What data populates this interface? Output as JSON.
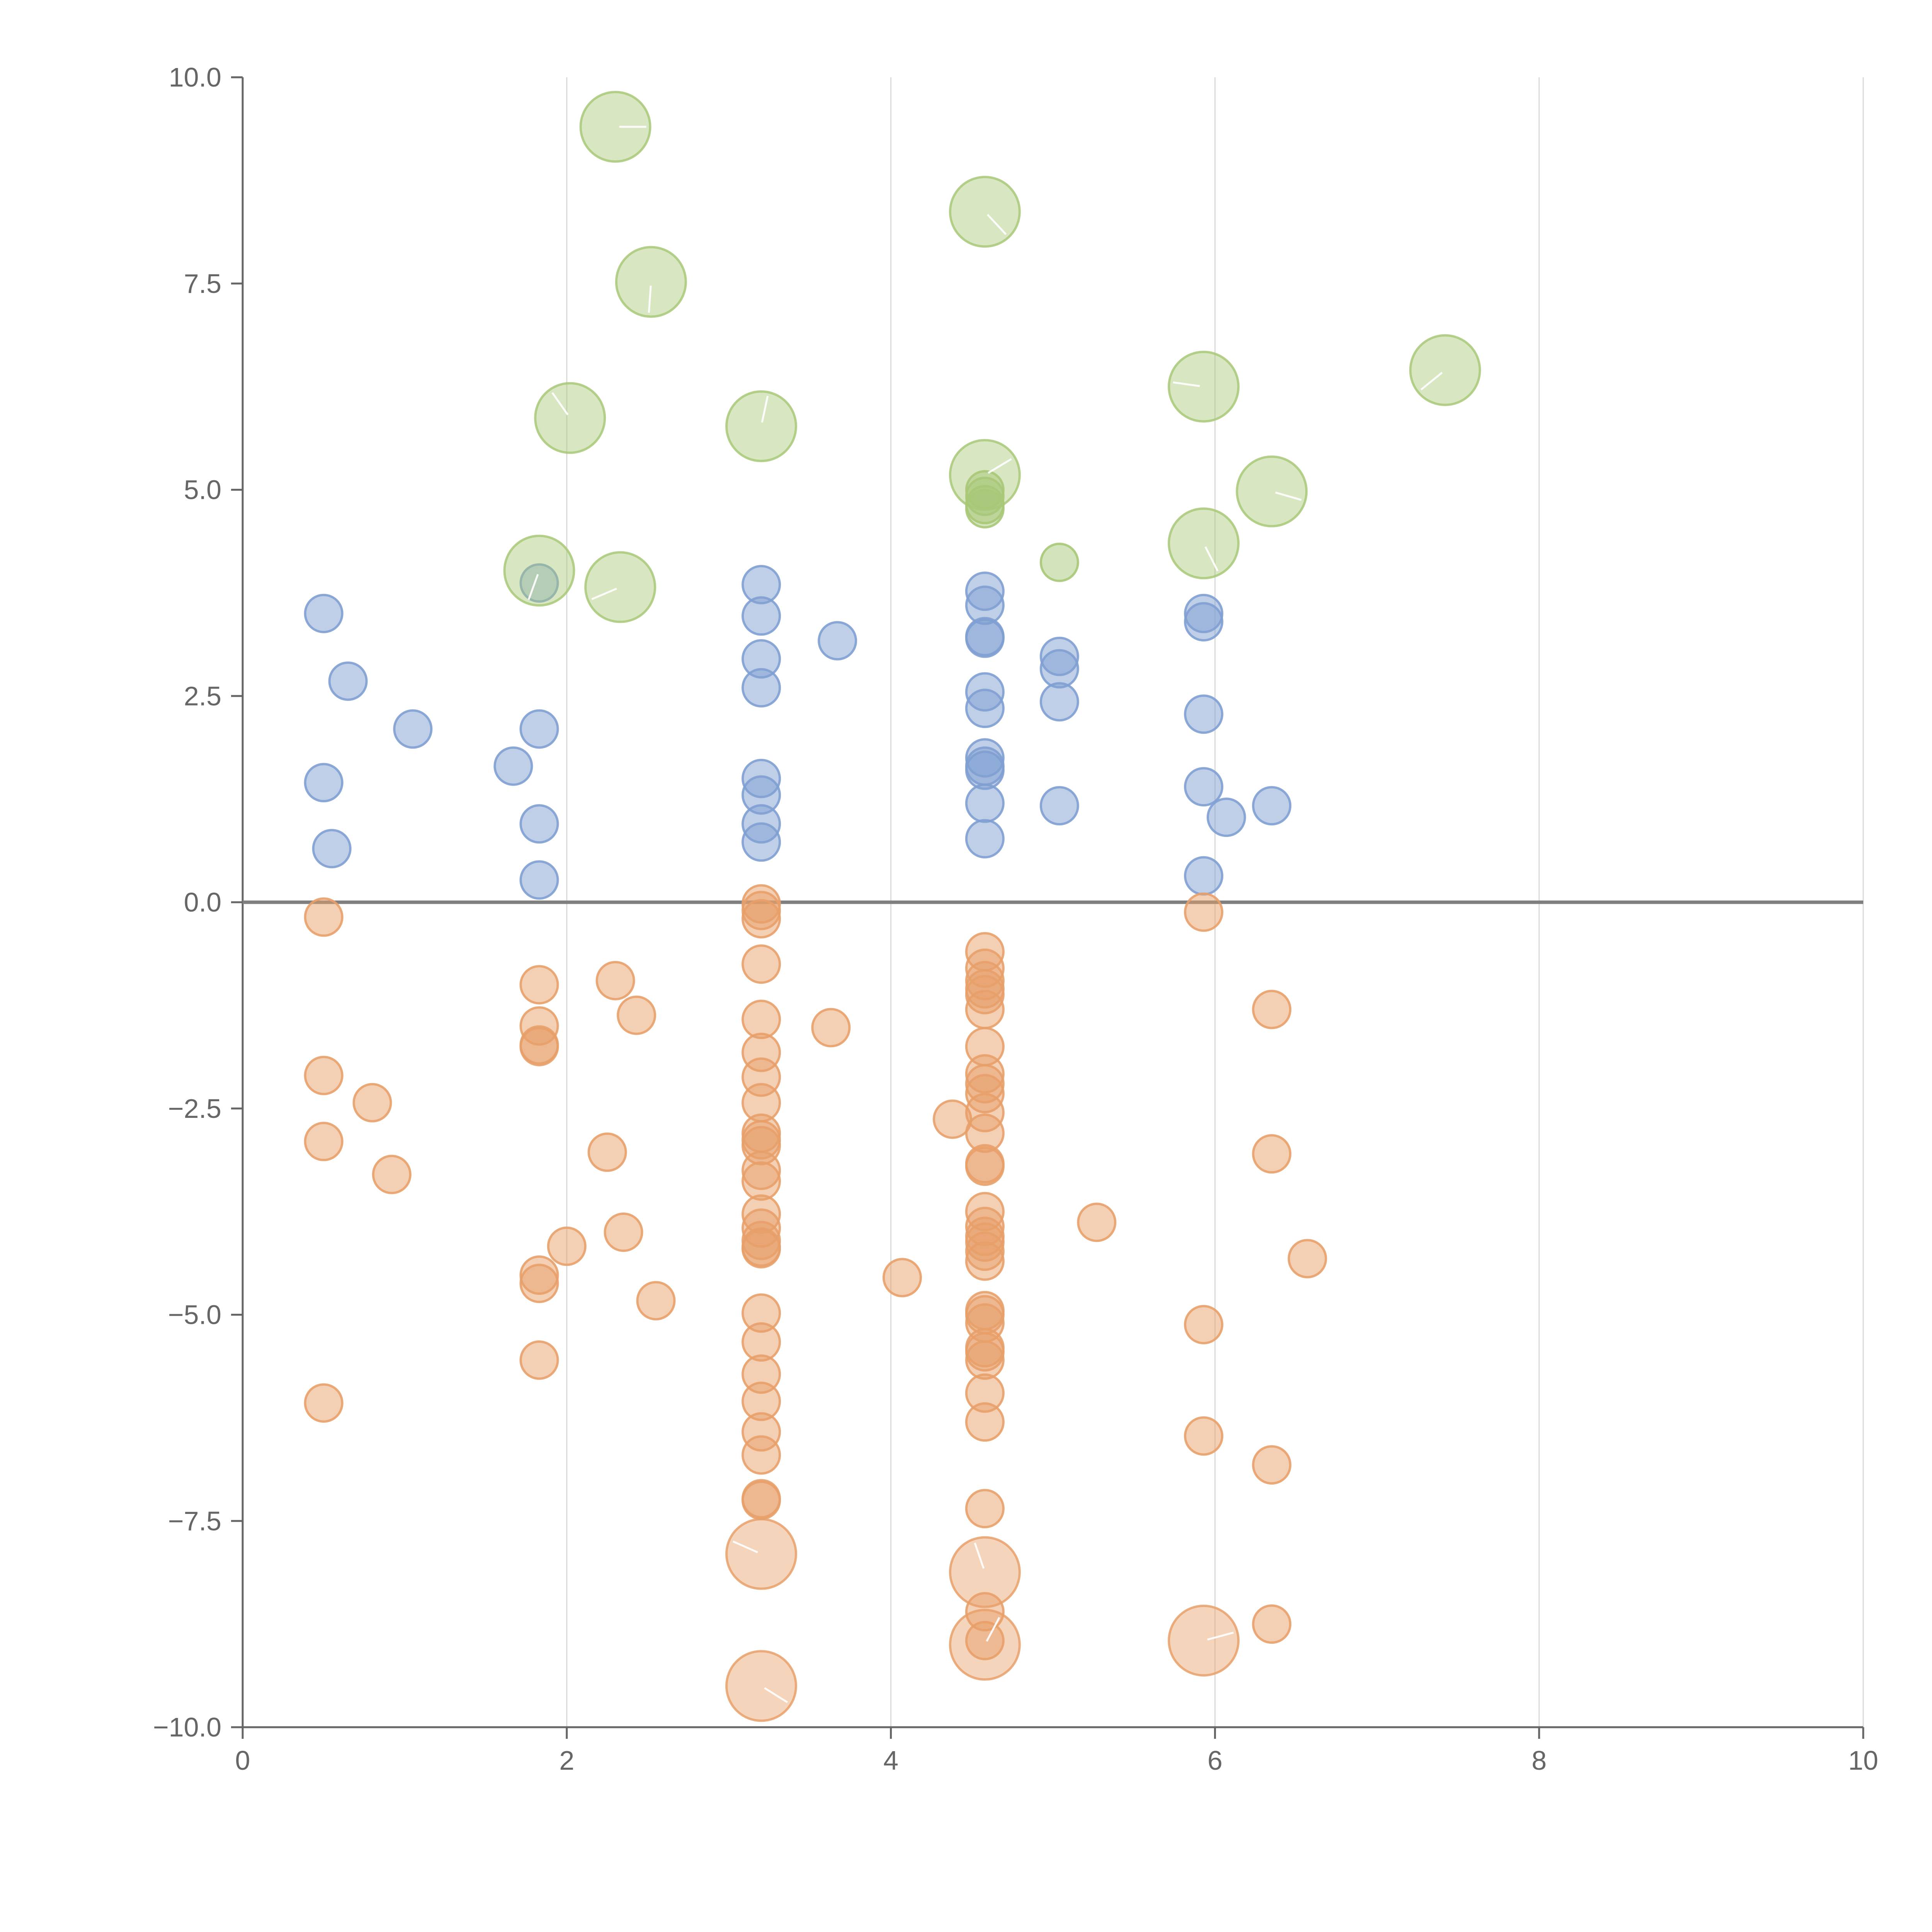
{
  "chart_data": {
    "type": "scatter",
    "title": "",
    "xlabel": "",
    "ylabel": "",
    "xlim": [
      0,
      10
    ],
    "ylim": [
      -10,
      10
    ],
    "x_ticks": [
      0,
      2,
      4,
      6,
      8,
      10
    ],
    "x_tick_labels": [
      "0",
      "2",
      "4",
      "6",
      "8",
      "10"
    ],
    "y_ticks": [
      10,
      7.5,
      5,
      2.5,
      0,
      -2.5,
      -5,
      -7.5,
      -10
    ],
    "y_tick_labels": [
      "10.0",
      "7.5",
      "5.0",
      "2.5",
      "0.0",
      "−2.5",
      "−5.0",
      "−7.5",
      "−10.0"
    ],
    "grid": "vertical",
    "zero_line": true,
    "colors": {
      "blue": "#7f9fd2",
      "orange": "#e8a06a",
      "green": "#a8c878",
      "axis": "#666666",
      "grid": "#d9d9d9",
      "zero_line": "#7f7f7f"
    },
    "series": [
      {
        "name": "blue",
        "color_key": "blue",
        "size": "small",
        "points": [
          [
            0.5,
            3.5
          ],
          [
            0.65,
            2.68
          ],
          [
            1.05,
            2.1
          ],
          [
            0.5,
            1.45
          ],
          [
            0.55,
            0.65
          ],
          [
            1.67,
            1.65
          ],
          [
            1.83,
            3.87
          ],
          [
            1.83,
            2.1
          ],
          [
            1.83,
            0.95
          ],
          [
            1.83,
            0.27
          ],
          [
            3.2,
            3.85
          ],
          [
            3.2,
            3.47
          ],
          [
            3.2,
            2.95
          ],
          [
            3.2,
            2.6
          ],
          [
            3.2,
            1.5
          ],
          [
            3.2,
            1.3
          ],
          [
            3.2,
            0.95
          ],
          [
            3.2,
            0.73
          ],
          [
            3.67,
            3.17
          ],
          [
            4.58,
            3.77
          ],
          [
            4.58,
            3.6
          ],
          [
            4.58,
            3.22
          ],
          [
            4.58,
            3.2
          ],
          [
            4.58,
            2.55
          ],
          [
            4.58,
            2.35
          ],
          [
            4.58,
            1.75
          ],
          [
            4.58,
            1.65
          ],
          [
            4.58,
            1.6
          ],
          [
            4.58,
            1.2
          ],
          [
            4.58,
            0.77
          ],
          [
            5.04,
            2.98
          ],
          [
            5.04,
            2.83
          ],
          [
            5.04,
            2.43
          ],
          [
            5.04,
            1.17
          ],
          [
            5.93,
            3.5
          ],
          [
            5.93,
            3.4
          ],
          [
            5.93,
            2.28
          ],
          [
            5.93,
            1.4
          ],
          [
            5.93,
            0.32
          ],
          [
            6.07,
            1.03
          ],
          [
            6.35,
            1.17
          ]
        ]
      },
      {
        "name": "orange",
        "color_key": "orange",
        "size": "small",
        "points": [
          [
            0.5,
            -0.18
          ],
          [
            0.5,
            -2.1
          ],
          [
            0.8,
            -2.43
          ],
          [
            0.5,
            -2.9
          ],
          [
            0.92,
            -3.3
          ],
          [
            0.5,
            -6.07
          ],
          [
            1.83,
            -1.0
          ],
          [
            1.83,
            -1.5
          ],
          [
            1.83,
            -1.73
          ],
          [
            1.83,
            -1.75
          ],
          [
            2.3,
            -0.95
          ],
          [
            2.43,
            -1.37
          ],
          [
            2.25,
            -3.03
          ],
          [
            2.35,
            -4.0
          ],
          [
            2.0,
            -4.17
          ],
          [
            1.83,
            -4.52
          ],
          [
            1.83,
            -4.62
          ],
          [
            2.55,
            -4.83
          ],
          [
            1.83,
            -5.55
          ],
          [
            3.2,
            -0.02
          ],
          [
            3.2,
            -0.1
          ],
          [
            3.2,
            -0.2
          ],
          [
            3.2,
            -0.75
          ],
          [
            3.2,
            -1.42
          ],
          [
            3.2,
            -1.82
          ],
          [
            3.2,
            -2.12
          ],
          [
            3.2,
            -2.43
          ],
          [
            3.2,
            -2.8
          ],
          [
            3.2,
            -2.88
          ],
          [
            3.2,
            -2.95
          ],
          [
            3.2,
            -3.25
          ],
          [
            3.2,
            -3.38
          ],
          [
            3.2,
            -3.78
          ],
          [
            3.2,
            -3.95
          ],
          [
            3.2,
            -4.1
          ],
          [
            3.2,
            -4.18
          ],
          [
            3.2,
            -4.2
          ],
          [
            3.2,
            -4.98
          ],
          [
            3.2,
            -5.33
          ],
          [
            3.2,
            -5.72
          ],
          [
            3.2,
            -6.05
          ],
          [
            3.2,
            -6.42
          ],
          [
            3.2,
            -6.7
          ],
          [
            3.2,
            -7.23
          ],
          [
            3.2,
            -7.25
          ],
          [
            3.63,
            -1.52
          ],
          [
            4.07,
            -4.55
          ],
          [
            4.38,
            -2.63
          ],
          [
            4.58,
            -0.6
          ],
          [
            4.58,
            -0.8
          ],
          [
            4.58,
            -0.95
          ],
          [
            4.58,
            -1.05
          ],
          [
            4.58,
            -1.12
          ],
          [
            4.58,
            -1.3
          ],
          [
            4.58,
            -1.75
          ],
          [
            4.58,
            -2.08
          ],
          [
            4.58,
            -2.2
          ],
          [
            4.58,
            -2.32
          ],
          [
            4.58,
            -2.55
          ],
          [
            4.58,
            -2.8
          ],
          [
            4.58,
            -3.17
          ],
          [
            4.58,
            -3.2
          ],
          [
            4.58,
            -3.75
          ],
          [
            4.58,
            -3.93
          ],
          [
            4.58,
            -4.05
          ],
          [
            4.58,
            -4.12
          ],
          [
            4.58,
            -4.23
          ],
          [
            4.58,
            -4.35
          ],
          [
            4.58,
            -4.95
          ],
          [
            4.58,
            -5.0
          ],
          [
            4.58,
            -5.1
          ],
          [
            4.58,
            -5.4
          ],
          [
            4.58,
            -5.45
          ],
          [
            4.58,
            -5.55
          ],
          [
            4.58,
            -5.95
          ],
          [
            4.58,
            -6.3
          ],
          [
            4.58,
            -7.35
          ],
          [
            4.58,
            -8.6
          ],
          [
            4.58,
            -8.95
          ],
          [
            5.27,
            -3.88
          ],
          [
            5.93,
            -0.12
          ],
          [
            5.93,
            -5.12
          ],
          [
            5.93,
            -6.47
          ],
          [
            6.35,
            -1.3
          ],
          [
            6.35,
            -3.05
          ],
          [
            6.35,
            -6.82
          ],
          [
            6.35,
            -8.75
          ],
          [
            6.57,
            -4.32
          ]
        ]
      },
      {
        "name": "green",
        "color_key": "green",
        "size": "small",
        "points": [
          [
            4.58,
            5.0
          ],
          [
            4.58,
            4.92
          ],
          [
            4.58,
            4.82
          ],
          [
            4.58,
            4.77
          ],
          [
            5.04,
            4.12
          ]
        ]
      }
    ],
    "highlighted": [
      {
        "color_key": "green",
        "x": 2.3,
        "y": 9.4
      },
      {
        "color_key": "green",
        "x": 4.58,
        "y": 8.37
      },
      {
        "color_key": "green",
        "x": 2.52,
        "y": 7.52
      },
      {
        "color_key": "green",
        "x": 7.42,
        "y": 6.45
      },
      {
        "color_key": "green",
        "x": 5.93,
        "y": 6.25
      },
      {
        "color_key": "green",
        "x": 2.02,
        "y": 5.87
      },
      {
        "color_key": "green",
        "x": 3.2,
        "y": 5.77
      },
      {
        "color_key": "green",
        "x": 4.58,
        "y": 5.18
      },
      {
        "color_key": "green",
        "x": 6.35,
        "y": 4.98
      },
      {
        "color_key": "green",
        "x": 5.93,
        "y": 4.35
      },
      {
        "color_key": "green",
        "x": 1.83,
        "y": 4.02
      },
      {
        "color_key": "green",
        "x": 2.33,
        "y": 3.82
      },
      {
        "color_key": "orange",
        "x": 3.2,
        "y": -7.9
      },
      {
        "color_key": "orange",
        "x": 4.58,
        "y": -8.12
      },
      {
        "color_key": "orange",
        "x": 4.58,
        "y": -9.0
      },
      {
        "color_key": "orange",
        "x": 5.93,
        "y": -8.95
      },
      {
        "color_key": "orange",
        "x": 3.2,
        "y": -9.5
      }
    ]
  }
}
